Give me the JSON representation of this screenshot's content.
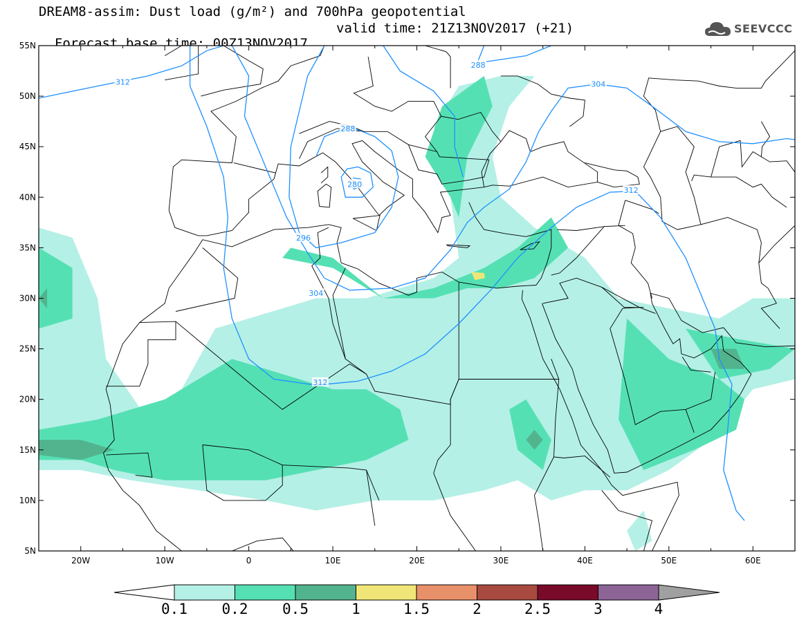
{
  "title": {
    "line1": "DREAM8-assim: Dust load (g/m²) and 700hPa geopotential",
    "base_time": "Forecast base time: 00Z13NOV2017",
    "valid_time": "valid time: 21Z13NOV2017 (+21)"
  },
  "logo": {
    "icon": "cloud-icon",
    "text": "SEEVCCC"
  },
  "map": {
    "lon_range": [
      -25,
      65
    ],
    "lat_range": [
      5,
      55
    ],
    "lat_ticks": [
      "55N",
      "50N",
      "45N",
      "40N",
      "35N",
      "30N",
      "25N",
      "20N",
      "15N",
      "10N",
      "5N"
    ],
    "lon_ticks": [
      "20W",
      "10W",
      "0",
      "10E",
      "20E",
      "30E",
      "40E",
      "50E",
      "60E"
    ],
    "contour_labels": [
      {
        "text": "312",
        "lon": -15,
        "lat": 51.4
      },
      {
        "text": "288",
        "lon": 27.3,
        "lat": 53.1
      },
      {
        "text": "304",
        "lon": 41.6,
        "lat": 51.2
      },
      {
        "text": "288",
        "lon": 11.8,
        "lat": 46.8
      },
      {
        "text": "280",
        "lon": 12.6,
        "lat": 41.3
      },
      {
        "text": "312",
        "lon": 45.5,
        "lat": 40.7
      },
      {
        "text": "296",
        "lon": 6.5,
        "lat": 36.0
      },
      {
        "text": "304",
        "lon": 8.0,
        "lat": 30.5
      },
      {
        "text": "312",
        "lon": 8.5,
        "lat": 21.7
      }
    ],
    "colors": {
      "c01": "#b4f0e6",
      "c02": "#55e0b4",
      "c05": "#52b48e",
      "c1": "#f0e678",
      "coast": "#000000",
      "contour": "#1e90ff"
    }
  },
  "colorbar": {
    "colors": [
      "#ffffff",
      "#b4f0e6",
      "#55e0b4",
      "#52b48e",
      "#f0e678",
      "#e8906a",
      "#a84a40",
      "#7a0a2a",
      "#8c6496",
      "#a0a0a0"
    ],
    "labels": [
      "0.1",
      "0.2",
      "0.5",
      "1",
      "1.5",
      "2",
      "2.5",
      "3",
      "4"
    ]
  }
}
